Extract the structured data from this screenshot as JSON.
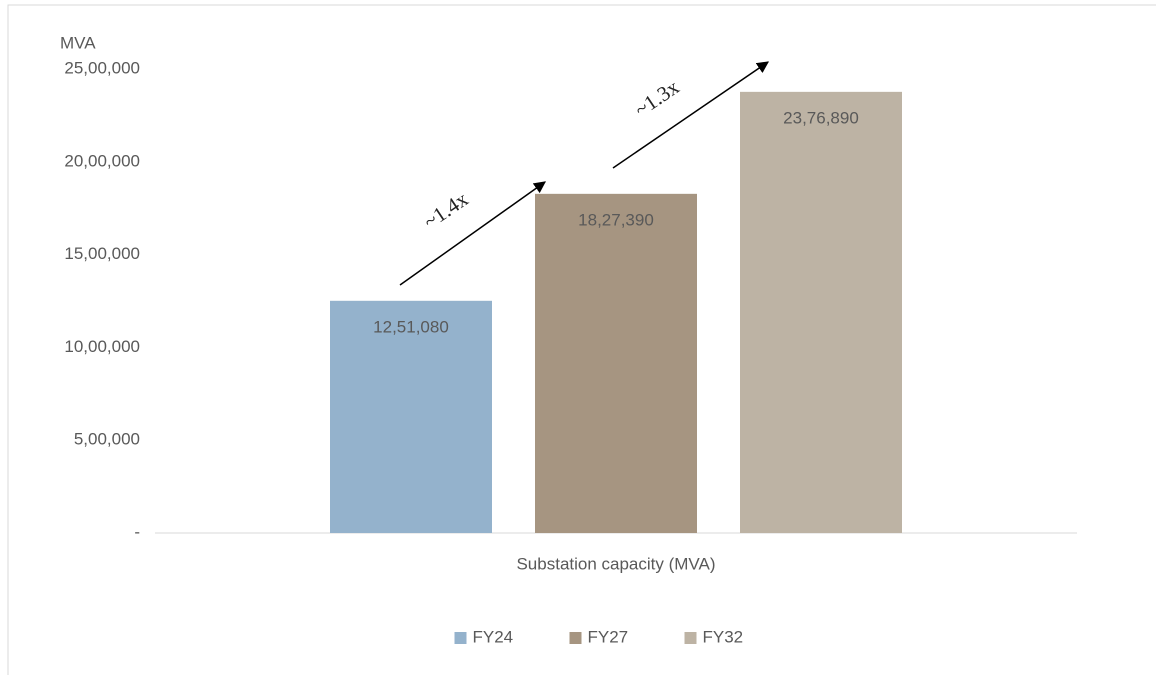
{
  "chart_data": {
    "type": "bar",
    "y_axis_label": "MVA",
    "categories": [
      "Substation capacity (MVA)"
    ],
    "series": [
      {
        "name": "FY24",
        "color": "#94b2cc",
        "values": [
          1251080
        ],
        "value_labels": [
          "12,51,080"
        ]
      },
      {
        "name": "FY27",
        "color": "#a69581",
        "values": [
          1827390
        ],
        "value_labels": [
          "18,27,390"
        ]
      },
      {
        "name": "FY32",
        "color": "#bdb3a4",
        "values": [
          2376890
        ],
        "value_labels": [
          "23,76,890"
        ]
      }
    ],
    "ylim": [
      0,
      2500000
    ],
    "yticks": [
      {
        "value": 0,
        "label": "-"
      },
      {
        "value": 500000,
        "label": "5,00,000"
      },
      {
        "value": 1000000,
        "label": "10,00,000"
      },
      {
        "value": 1500000,
        "label": "15,00,000"
      },
      {
        "value": 2000000,
        "label": "20,00,000"
      },
      {
        "value": 2500000,
        "label": "25,00,000"
      }
    ],
    "annotations": [
      {
        "text": "~1.4x"
      },
      {
        "text": "~1.3x"
      }
    ],
    "grid": false,
    "legend": "bottom"
  }
}
